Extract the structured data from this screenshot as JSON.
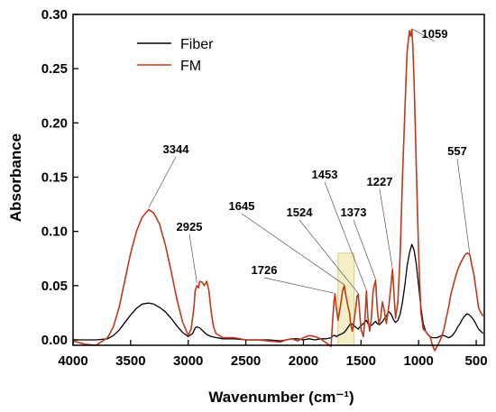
{
  "chart_data": {
    "type": "line",
    "xlabel": "Wavenumber (cm⁻¹)",
    "ylabel": "Absorbance",
    "xlim": [
      4000,
      430
    ],
    "ylim": [
      -0.005,
      0.3
    ],
    "x_reversed": true,
    "x_ticks": [
      4000,
      3500,
      3000,
      2500,
      2000,
      1500,
      1000,
      500
    ],
    "y_ticks": [
      0.0,
      0.05,
      0.1,
      0.15,
      0.2,
      0.25,
      0.3
    ],
    "x_tick_labels": [
      "4000",
      "3500",
      "3000",
      "2500",
      "2000",
      "1500",
      "1000",
      "500"
    ],
    "y_tick_labels": [
      "0.00",
      "0.05",
      "0.10",
      "0.15",
      "0.20",
      "0.25",
      "0.30"
    ],
    "legend_position": "top-left",
    "series": [
      {
        "name": "Fiber",
        "color": "#000000",
        "x": [
          4000,
          3800,
          3700,
          3650,
          3600,
          3550,
          3500,
          3450,
          3400,
          3344,
          3300,
          3250,
          3200,
          3150,
          3100,
          3050,
          3000,
          2960,
          2940,
          2925,
          2900,
          2880,
          2860,
          2840,
          2800,
          2750,
          2700,
          2600,
          2500,
          2400,
          2300,
          2200,
          2150,
          2100,
          2050,
          2000,
          1950,
          1900,
          1850,
          1800,
          1760,
          1740,
          1726,
          1715,
          1700,
          1680,
          1660,
          1645,
          1630,
          1610,
          1590,
          1570,
          1550,
          1524,
          1510,
          1490,
          1470,
          1453,
          1440,
          1420,
          1400,
          1385,
          1373,
          1360,
          1340,
          1320,
          1300,
          1280,
          1260,
          1240,
          1227,
          1215,
          1200,
          1180,
          1160,
          1140,
          1120,
          1100,
          1080,
          1059,
          1040,
          1020,
          1000,
          980,
          960,
          940,
          920,
          900,
          880,
          860,
          840,
          820,
          800,
          780,
          760,
          740,
          720,
          700,
          680,
          660,
          640,
          620,
          600,
          580,
          560,
          540,
          520,
          500,
          480,
          460,
          440
        ],
        "y": [
          0.0,
          0.0,
          0.001,
          0.004,
          0.009,
          0.016,
          0.023,
          0.029,
          0.033,
          0.034,
          0.033,
          0.03,
          0.026,
          0.02,
          0.013,
          0.007,
          0.003,
          0.006,
          0.011,
          0.012,
          0.011,
          0.009,
          0.007,
          0.005,
          0.003,
          0.002,
          0.001,
          0.001,
          0.0,
          0.0,
          0.0,
          -0.001,
          0.0,
          0.001,
          0.001,
          0.0,
          0.001,
          0.0,
          0.001,
          0.001,
          0.002,
          0.004,
          0.004,
          0.003,
          0.004,
          0.005,
          0.006,
          0.007,
          0.009,
          0.012,
          0.015,
          0.014,
          0.012,
          0.01,
          0.012,
          0.014,
          0.016,
          0.018,
          0.015,
          0.013,
          0.014,
          0.016,
          0.017,
          0.015,
          0.014,
          0.016,
          0.019,
          0.022,
          0.026,
          0.024,
          0.021,
          0.018,
          0.016,
          0.018,
          0.024,
          0.035,
          0.05,
          0.068,
          0.08,
          0.088,
          0.083,
          0.07,
          0.05,
          0.03,
          0.015,
          0.008,
          0.005,
          0.003,
          0.002,
          0.002,
          0.002,
          0.003,
          0.004,
          0.004,
          0.003,
          0.002,
          0.003,
          0.005,
          0.008,
          0.012,
          0.015,
          0.019,
          0.022,
          0.024,
          0.023,
          0.021,
          0.018,
          0.014,
          0.01,
          0.008,
          0.006
        ]
      },
      {
        "name": "FM",
        "color": "#c0391b",
        "x": [
          4000,
          3900,
          3800,
          3700,
          3650,
          3600,
          3550,
          3500,
          3450,
          3400,
          3344,
          3300,
          3250,
          3200,
          3150,
          3100,
          3050,
          3000,
          2975,
          2950,
          2940,
          2925,
          2910,
          2900,
          2880,
          2860,
          2840,
          2820,
          2800,
          2780,
          2760,
          2700,
          2600,
          2500,
          2400,
          2300,
          2200,
          2150,
          2100,
          2050,
          2000,
          1950,
          1900,
          1850,
          1800,
          1760,
          1745,
          1735,
          1726,
          1715,
          1700,
          1680,
          1660,
          1645,
          1630,
          1615,
          1600,
          1590,
          1575,
          1560,
          1545,
          1535,
          1524,
          1515,
          1500,
          1480,
          1465,
          1453,
          1440,
          1425,
          1410,
          1395,
          1385,
          1373,
          1360,
          1345,
          1330,
          1315,
          1300,
          1280,
          1260,
          1240,
          1227,
          1215,
          1200,
          1180,
          1160,
          1140,
          1120,
          1100,
          1080,
          1070,
          1059,
          1050,
          1040,
          1030,
          1020,
          1000,
          980,
          960,
          940,
          920,
          900,
          880,
          860,
          840,
          820,
          800,
          780,
          760,
          740,
          720,
          700,
          680,
          660,
          640,
          620,
          600,
          580,
          560,
          550,
          540,
          520,
          500,
          480,
          460,
          440
        ],
        "y": [
          -0.001,
          -0.004,
          -0.005,
          0.002,
          0.012,
          0.03,
          0.055,
          0.08,
          0.1,
          0.113,
          0.12,
          0.117,
          0.107,
          0.088,
          0.064,
          0.038,
          0.017,
          0.004,
          0.01,
          0.03,
          0.045,
          0.05,
          0.048,
          0.054,
          0.053,
          0.05,
          0.054,
          0.045,
          0.025,
          0.012,
          0.006,
          0.002,
          0.002,
          0.0,
          0.0,
          -0.001,
          -0.002,
          0.0,
          0.001,
          -0.001,
          0.002,
          0.004,
          0.003,
          0.001,
          -0.003,
          -0.006,
          0.02,
          0.035,
          0.042,
          0.03,
          0.018,
          0.03,
          0.045,
          0.05,
          0.04,
          0.032,
          0.025,
          0.015,
          0.008,
          0.018,
          0.03,
          0.04,
          0.042,
          0.03,
          0.01,
          0.003,
          0.02,
          0.045,
          0.02,
          0.008,
          0.02,
          0.045,
          0.05,
          0.055,
          0.03,
          0.015,
          0.02,
          0.035,
          0.028,
          0.015,
          0.03,
          0.05,
          0.065,
          0.045,
          0.02,
          0.035,
          0.08,
          0.15,
          0.21,
          0.265,
          0.285,
          0.28,
          0.286,
          0.27,
          0.24,
          0.2,
          0.16,
          0.08,
          0.025,
          0.01,
          0.008,
          0.005,
          0.003,
          -0.005,
          -0.01,
          -0.006,
          -0.002,
          0.003,
          0.01,
          0.02,
          0.03,
          0.042,
          0.05,
          0.058,
          0.065,
          0.07,
          0.074,
          0.078,
          0.08,
          0.079,
          0.076,
          0.07,
          0.06,
          0.045,
          0.03,
          0.025,
          0.022
        ]
      }
    ],
    "annotations": [
      {
        "label": "3344",
        "peak_x": 3344,
        "peak_y": 0.121
      },
      {
        "label": "2925",
        "peak_x": 2925,
        "peak_y": 0.052
      },
      {
        "label": "1726",
        "peak_x": 1726,
        "peak_y": 0.042
      },
      {
        "label": "1645",
        "peak_x": 1645,
        "peak_y": 0.05
      },
      {
        "label": "1524",
        "peak_x": 1524,
        "peak_y": 0.042
      },
      {
        "label": "1453",
        "peak_x": 1453,
        "peak_y": 0.045
      },
      {
        "label": "1373",
        "peak_x": 1373,
        "peak_y": 0.055
      },
      {
        "label": "1227",
        "peak_x": 1227,
        "peak_y": 0.065
      },
      {
        "label": "1059",
        "peak_x": 1059,
        "peak_y": 0.286
      },
      {
        "label": "557",
        "peak_x": 557,
        "peak_y": 0.079
      }
    ],
    "highlight_region": {
      "x": [
        1700,
        1560
      ],
      "y": [
        -0.005,
        0.08
      ],
      "color": "#f3efc6"
    }
  }
}
